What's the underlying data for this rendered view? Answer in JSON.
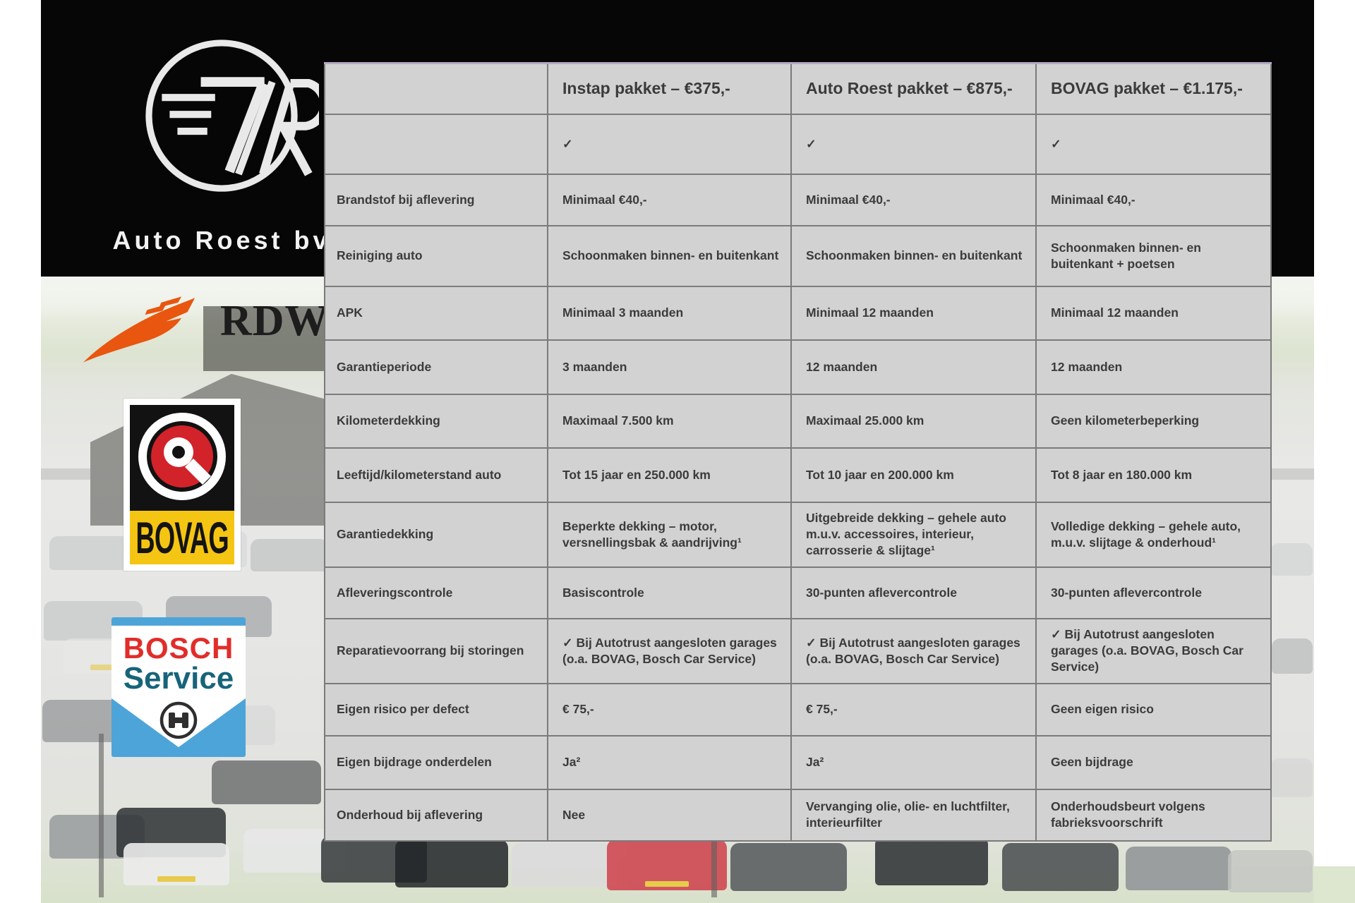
{
  "branding": {
    "company_name": "Auto Roest bv",
    "monogram": "7R"
  },
  "photo": {
    "building_sign": "Auto Ro"
  },
  "logos": {
    "rdw": {
      "text": "RDW"
    },
    "bovag": {
      "text": "BOVAG"
    },
    "bosch": {
      "line1": "BOSCH",
      "line2": "Service"
    }
  },
  "colors": {
    "table_background": "#d2d2d2",
    "table_border": "#7b7b7b",
    "table_text": "#3b3b3b",
    "rdw_orange": "#e8560f",
    "bovag_red": "#d2232a",
    "bovag_yellow": "#f5c513",
    "bosch_blue": "#4da4d8",
    "bosch_red": "#e12d2a",
    "bosch_teal": "#17647a"
  },
  "table": {
    "columns": [
      "",
      "Instap pakket – €375,-",
      "Auto Roest pakket – €875,-",
      "BOVAG pakket – €1.175,-"
    ],
    "rows": [
      {
        "label": "",
        "cells": [
          "✓",
          "✓",
          "✓"
        ]
      },
      {
        "label": "Brandstof bij aflevering",
        "cells": [
          "Minimaal €40,-",
          "Minimaal €40,-",
          "Minimaal €40,-"
        ]
      },
      {
        "label": "Reiniging auto",
        "cells": [
          "Schoonmaken binnen- en buitenkant",
          "Schoonmaken binnen- en buitenkant",
          "Schoonmaken binnen- en buitenkant + poetsen"
        ]
      },
      {
        "label": "APK",
        "cells": [
          "Minimaal 3 maanden",
          "Minimaal 12 maanden",
          "Minimaal 12 maanden"
        ]
      },
      {
        "label": "Garantieperiode",
        "cells": [
          "3 maanden",
          "12 maanden",
          "12 maanden"
        ]
      },
      {
        "label": "Kilometerdekking",
        "cells": [
          "Maximaal 7.500 km",
          "Maximaal 25.000 km",
          "Geen kilometerbeperking"
        ]
      },
      {
        "label": "Leeftijd/kilometerstand auto",
        "cells": [
          "Tot 15 jaar en 250.000 km",
          "Tot 10 jaar en 200.000 km",
          "Tot 8 jaar en 180.000 km"
        ]
      },
      {
        "label": "Garantiedekking",
        "cells": [
          "Beperkte dekking – motor, versnellingsbak & aandrijving¹",
          "Uitgebreide dekking – gehele auto m.u.v. accessoires, interieur, carrosserie & slijtage¹",
          "Volledige dekking – gehele auto, m.u.v. slijtage & onderhoud¹"
        ]
      },
      {
        "label": "Afleveringscontrole",
        "cells": [
          "Basiscontrole",
          "30-punten aflevercontrole",
          "30-punten aflevercontrole"
        ]
      },
      {
        "label": "Reparatievoorrang bij storingen",
        "cells": [
          "✓ Bij Autotrust aangesloten garages (o.a. BOVAG, Bosch Car Service)",
          "✓ Bij Autotrust aangesloten garages (o.a. BOVAG, Bosch Car Service)",
          "✓ Bij Autotrust aangesloten garages (o.a. BOVAG, Bosch Car Service)"
        ]
      },
      {
        "label": "Eigen risico per defect",
        "cells": [
          "€ 75,-",
          "€ 75,-",
          "Geen eigen risico"
        ]
      },
      {
        "label": "Eigen bijdrage onderdelen",
        "cells": [
          "Ja²",
          "Ja²",
          "Geen bijdrage"
        ]
      },
      {
        "label": "Onderhoud bij aflevering",
        "cells": [
          "Nee",
          "Vervanging olie, olie- en luchtfilter, interieurfilter",
          "Onderhoudsbeurt volgens fabrieksvoorschrift"
        ]
      }
    ]
  }
}
